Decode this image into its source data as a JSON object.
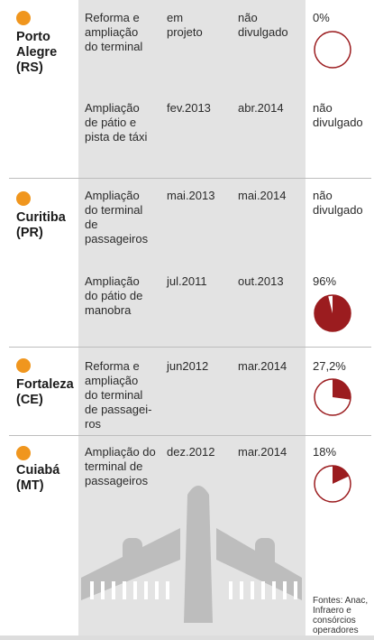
{
  "colors": {
    "accent_dot": "#f0961e",
    "pie_fill": "#9b1c1f",
    "pie_stroke": "#9b1c1f",
    "column_bg": "#e3e3e3",
    "plane": "#bfbfbf"
  },
  "airports": [
    {
      "city": "Porto\nAlegre\n(RS)",
      "projects": [
        {
          "work": "Reforma e\nampliação\ndo terminal",
          "start": "em\nprojeto",
          "end": "não\ndivulgado",
          "progress_label": "0%",
          "progress_fraction": 0.0
        },
        {
          "work": "Ampliação\nde pátio e\npista de táxi",
          "start": "fev.2013",
          "end": "abr.2014",
          "progress_label": "não\ndivulgado",
          "progress_fraction": null
        }
      ]
    },
    {
      "city": "Curitiba\n(PR)",
      "projects": [
        {
          "work": "Ampliação\ndo terminal\nde\npassageiros",
          "start": "mai.2013",
          "end": "mai.2014",
          "progress_label": "não\ndivulgado",
          "progress_fraction": null
        },
        {
          "work": "Ampliação\ndo pátio de\nmanobra",
          "start": "jul.2011",
          "end": "out.2013",
          "progress_label": "96%",
          "progress_fraction": 0.96
        }
      ]
    },
    {
      "city": "Fortaleza\n(CE)",
      "projects": [
        {
          "work": "Reforma e\nampliação\ndo terminal\nde passagei-\nros",
          "start": "jun2012",
          "end": "mar.2014",
          "progress_label": "27,2%",
          "progress_fraction": 0.272
        }
      ]
    },
    {
      "city": "Cuiabá\n(MT)",
      "projects": [
        {
          "work": "Ampliação do\nterminal de\npassageiros",
          "start": "dez.2012",
          "end": "mar.2014",
          "progress_label": "18%",
          "progress_fraction": 0.18
        }
      ]
    }
  ],
  "source": "Fontes: Anac,\nInfraero e\nconsórcios\noperadores"
}
